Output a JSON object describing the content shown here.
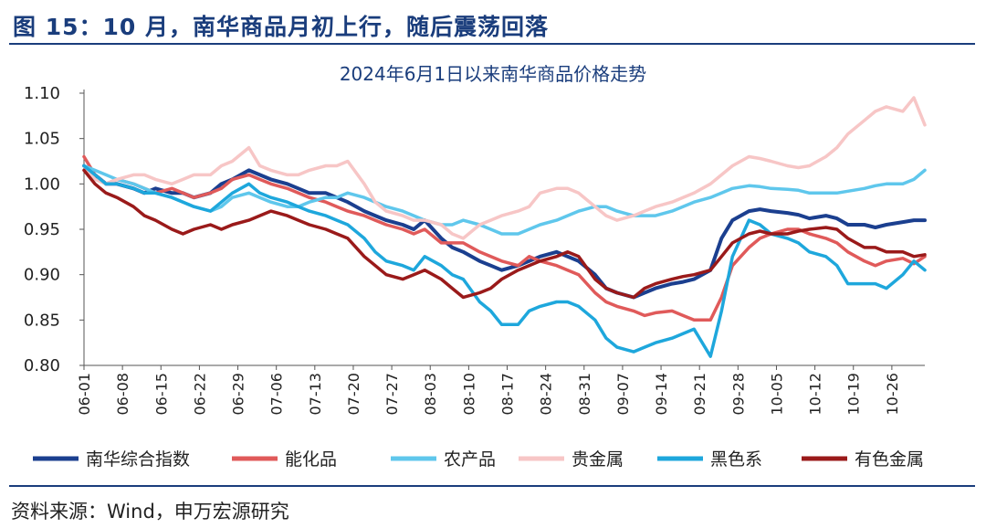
{
  "figure": {
    "title": "图 15：10 月，南华商品月初上行，随后震荡回落",
    "source": "资料来源：Wind，申万宏源研究"
  },
  "chart_data": {
    "type": "line",
    "title": "2024年6月1日以来南华商品价格走势",
    "xlabel": "",
    "ylabel": "",
    "ylim": [
      0.8,
      1.1
    ],
    "yticks": [
      "1.10",
      "1.05",
      "1.00",
      "0.95",
      "0.90",
      "0.85",
      "0.80"
    ],
    "xticks": [
      "06-01",
      "06-08",
      "06-15",
      "06-22",
      "06-29",
      "07-06",
      "07-13",
      "07-20",
      "07-27",
      "08-03",
      "08-10",
      "08-17",
      "08-24",
      "08-31",
      "09-07",
      "09-14",
      "09-21",
      "09-28",
      "10-05",
      "10-12",
      "10-19",
      "10-26"
    ],
    "grid": false,
    "legend_position": "bottom",
    "x": [
      "06-01",
      "06-03",
      "06-05",
      "06-07",
      "06-10",
      "06-12",
      "06-14",
      "06-17",
      "06-19",
      "06-21",
      "06-24",
      "06-26",
      "06-28",
      "07-01",
      "07-03",
      "07-05",
      "07-08",
      "07-10",
      "07-12",
      "07-15",
      "07-17",
      "07-19",
      "07-22",
      "07-24",
      "07-26",
      "07-29",
      "07-31",
      "08-02",
      "08-05",
      "08-07",
      "08-09",
      "08-12",
      "08-14",
      "08-16",
      "08-19",
      "08-21",
      "08-23",
      "08-26",
      "08-28",
      "08-30",
      "09-02",
      "09-04",
      "09-06",
      "09-09",
      "09-11",
      "09-13",
      "09-16",
      "09-18",
      "09-20",
      "09-23",
      "09-25",
      "09-27",
      "09-30",
      "10-02",
      "10-04",
      "10-07",
      "10-09",
      "10-11",
      "10-14",
      "10-16",
      "10-18",
      "10-21",
      "10-23",
      "10-25",
      "10-28",
      "10-30",
      "11-01"
    ],
    "series": [
      {
        "name": "南华综合指数",
        "color": "#1b3f8f",
        "values": [
          1.02,
          1.01,
          1.0,
          1.0,
          0.995,
          0.99,
          0.995,
          0.99,
          0.99,
          0.985,
          0.99,
          1.0,
          1.005,
          1.015,
          1.01,
          1.005,
          1.0,
          0.995,
          0.99,
          0.99,
          0.985,
          0.98,
          0.97,
          0.965,
          0.96,
          0.955,
          0.95,
          0.96,
          0.94,
          0.93,
          0.925,
          0.915,
          0.91,
          0.905,
          0.91,
          0.915,
          0.92,
          0.925,
          0.92,
          0.915,
          0.9,
          0.885,
          0.88,
          0.875,
          0.88,
          0.885,
          0.89,
          0.892,
          0.895,
          0.905,
          0.94,
          0.96,
          0.97,
          0.972,
          0.97,
          0.968,
          0.966,
          0.962,
          0.965,
          0.962,
          0.955,
          0.955,
          0.952,
          0.955,
          0.958,
          0.96,
          0.96
        ]
      },
      {
        "name": "能化品",
        "color": "#e05a5a",
        "values": [
          1.03,
          1.01,
          1.0,
          1.005,
          1.0,
          0.995,
          0.99,
          0.995,
          0.99,
          0.985,
          0.99,
          0.995,
          1.005,
          1.01,
          1.005,
          1.0,
          0.995,
          0.99,
          0.985,
          0.98,
          0.975,
          0.97,
          0.965,
          0.96,
          0.955,
          0.95,
          0.945,
          0.95,
          0.935,
          0.935,
          0.935,
          0.925,
          0.92,
          0.915,
          0.91,
          0.92,
          0.915,
          0.91,
          0.905,
          0.9,
          0.88,
          0.87,
          0.865,
          0.86,
          0.855,
          0.858,
          0.86,
          0.855,
          0.85,
          0.85,
          0.875,
          0.91,
          0.93,
          0.94,
          0.945,
          0.95,
          0.95,
          0.945,
          0.94,
          0.935,
          0.925,
          0.915,
          0.91,
          0.915,
          0.918,
          0.912,
          0.92
        ]
      },
      {
        "name": "农产品",
        "color": "#5fc7ec",
        "values": [
          1.02,
          1.015,
          1.01,
          1.005,
          1.0,
          0.995,
          0.99,
          0.985,
          0.98,
          0.975,
          0.97,
          0.975,
          0.985,
          0.99,
          0.985,
          0.98,
          0.975,
          0.975,
          0.98,
          0.985,
          0.985,
          0.99,
          0.985,
          0.98,
          0.975,
          0.97,
          0.965,
          0.96,
          0.955,
          0.955,
          0.96,
          0.955,
          0.95,
          0.945,
          0.945,
          0.95,
          0.955,
          0.96,
          0.965,
          0.97,
          0.975,
          0.975,
          0.97,
          0.965,
          0.965,
          0.965,
          0.97,
          0.975,
          0.98,
          0.985,
          0.99,
          0.995,
          0.998,
          0.997,
          0.995,
          0.994,
          0.993,
          0.99,
          0.99,
          0.99,
          0.992,
          0.995,
          0.998,
          1.0,
          1.0,
          1.005,
          1.015
        ]
      },
      {
        "name": "贵金属",
        "color": "#f7c6c6",
        "values": [
          1.02,
          1.005,
          1.0,
          1.005,
          1.01,
          1.01,
          1.005,
          1.0,
          1.005,
          1.01,
          1.01,
          1.02,
          1.025,
          1.04,
          1.02,
          1.015,
          1.01,
          1.01,
          1.015,
          1.02,
          1.02,
          1.025,
          1.0,
          0.98,
          0.97,
          0.965,
          0.96,
          0.96,
          0.955,
          0.945,
          0.94,
          0.955,
          0.96,
          0.965,
          0.97,
          0.975,
          0.99,
          0.995,
          0.995,
          0.99,
          0.975,
          0.965,
          0.96,
          0.965,
          0.97,
          0.975,
          0.98,
          0.985,
          0.99,
          1.0,
          1.01,
          1.02,
          1.03,
          1.028,
          1.025,
          1.02,
          1.018,
          1.02,
          1.03,
          1.04,
          1.055,
          1.07,
          1.08,
          1.085,
          1.08,
          1.095,
          1.065
        ]
      },
      {
        "name": "黑色系",
        "color": "#1ea7dc",
        "values": [
          1.02,
          1.01,
          1.0,
          1.0,
          0.995,
          0.99,
          0.99,
          0.985,
          0.98,
          0.975,
          0.97,
          0.98,
          0.99,
          1.0,
          0.99,
          0.985,
          0.98,
          0.975,
          0.97,
          0.965,
          0.96,
          0.955,
          0.94,
          0.925,
          0.915,
          0.91,
          0.905,
          0.92,
          0.91,
          0.9,
          0.895,
          0.87,
          0.86,
          0.845,
          0.845,
          0.86,
          0.865,
          0.87,
          0.87,
          0.865,
          0.85,
          0.83,
          0.82,
          0.815,
          0.82,
          0.825,
          0.83,
          0.835,
          0.84,
          0.81,
          0.86,
          0.92,
          0.96,
          0.955,
          0.945,
          0.94,
          0.935,
          0.925,
          0.92,
          0.91,
          0.89,
          0.89,
          0.89,
          0.885,
          0.9,
          0.915,
          0.905
        ]
      },
      {
        "name": "有色金属",
        "color": "#9a1a1a",
        "values": [
          1.015,
          1.0,
          0.99,
          0.985,
          0.975,
          0.965,
          0.96,
          0.95,
          0.945,
          0.95,
          0.955,
          0.95,
          0.955,
          0.96,
          0.965,
          0.97,
          0.965,
          0.96,
          0.955,
          0.95,
          0.945,
          0.94,
          0.92,
          0.91,
          0.9,
          0.895,
          0.9,
          0.905,
          0.895,
          0.885,
          0.875,
          0.88,
          0.885,
          0.895,
          0.905,
          0.91,
          0.915,
          0.92,
          0.925,
          0.92,
          0.895,
          0.885,
          0.88,
          0.875,
          0.885,
          0.89,
          0.895,
          0.898,
          0.9,
          0.905,
          0.92,
          0.935,
          0.945,
          0.948,
          0.945,
          0.945,
          0.948,
          0.95,
          0.952,
          0.95,
          0.94,
          0.93,
          0.93,
          0.925,
          0.925,
          0.92,
          0.922
        ]
      }
    ]
  }
}
